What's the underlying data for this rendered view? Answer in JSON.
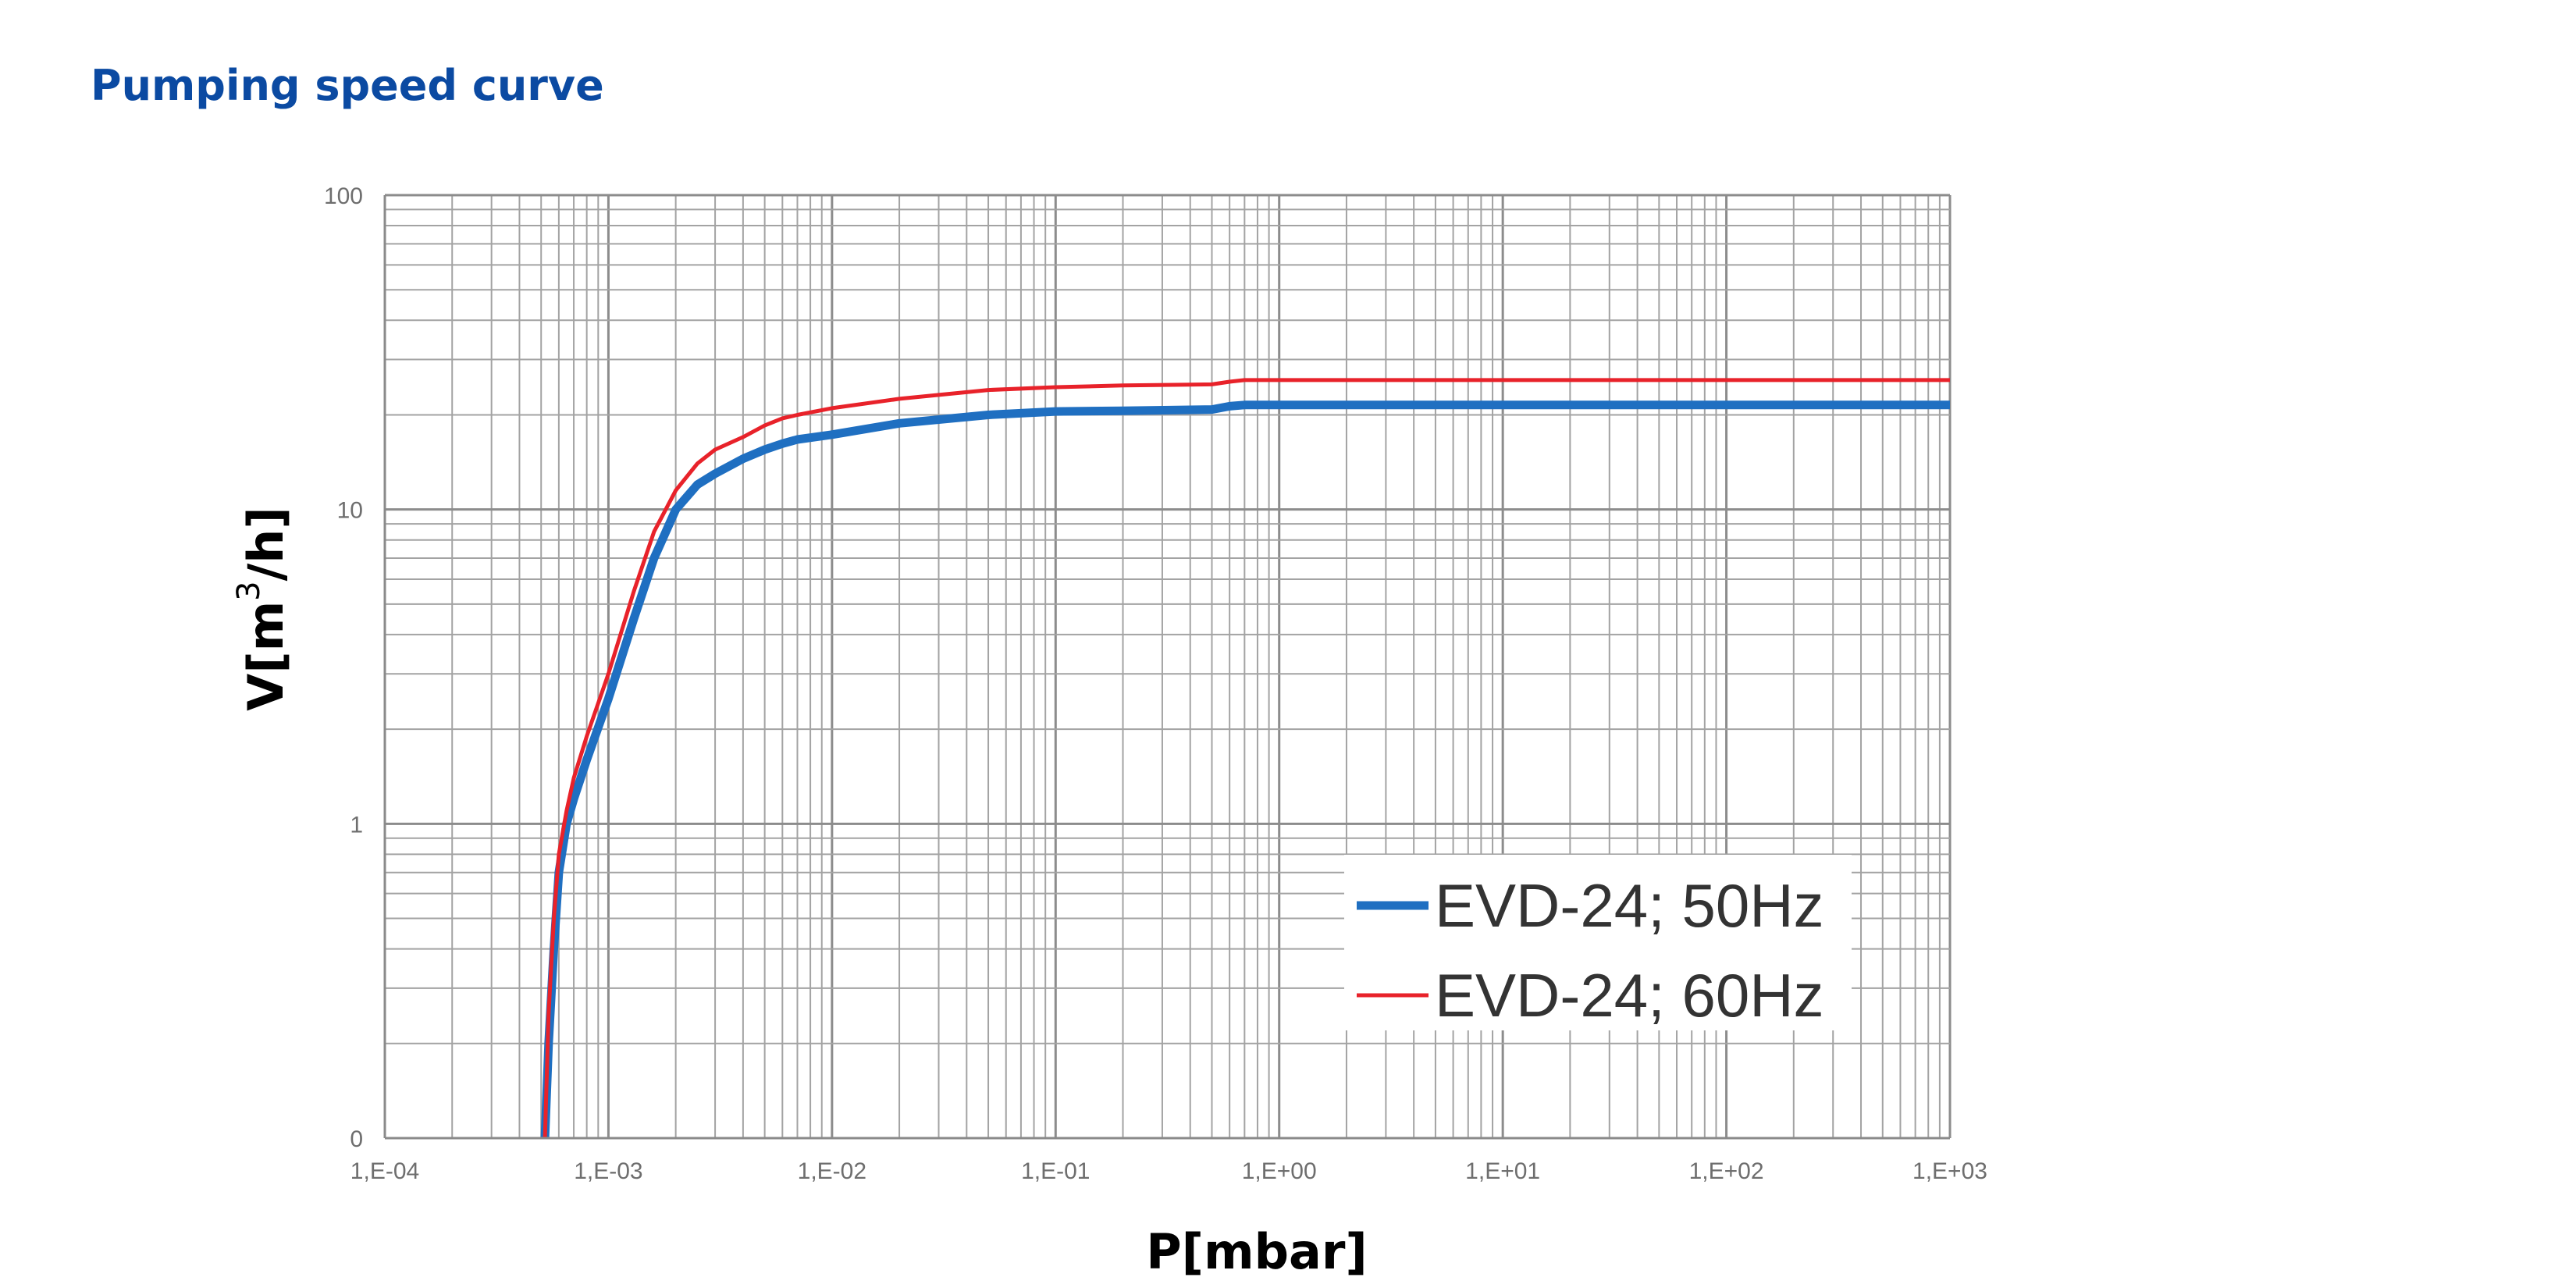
{
  "page": {
    "title": "Pumping speed curve",
    "title_color": "#0b4aa2"
  },
  "chart_data": {
    "type": "line",
    "x_scale": "log",
    "y_scale": "log",
    "xlabel": "P[mbar]",
    "ylabel_main": "V[m",
    "ylabel_sup": "3",
    "ylabel_tail": "/h]",
    "xlim": [
      0.0001,
      1000
    ],
    "ylim": [
      0.1,
      100
    ],
    "x_ticks": [
      {
        "value": 0.0001,
        "label": "1,E-04"
      },
      {
        "value": 0.001,
        "label": "1,E-03"
      },
      {
        "value": 0.01,
        "label": "1,E-02"
      },
      {
        "value": 0.1,
        "label": "1,E-01"
      },
      {
        "value": 1,
        "label": "1,E+00"
      },
      {
        "value": 10,
        "label": "1,E+01"
      },
      {
        "value": 100,
        "label": "1,E+02"
      },
      {
        "value": 1000,
        "label": "1,E+03"
      }
    ],
    "y_ticks": [
      {
        "value": 0.1,
        "label": "0"
      },
      {
        "value": 1,
        "label": "1"
      },
      {
        "value": 10,
        "label": "10"
      },
      {
        "value": 100,
        "label": "100"
      }
    ],
    "grid": true,
    "legend_position": "bottom-right",
    "series": [
      {
        "name": "EVD-24; 50Hz",
        "color": "#1f6fc1",
        "x": [
          0.00052,
          0.00054,
          0.00057,
          0.0006,
          0.00065,
          0.0007,
          0.0008,
          0.001,
          0.0013,
          0.0016,
          0.002,
          0.0025,
          0.003,
          0.004,
          0.005,
          0.006,
          0.007,
          0.01,
          0.02,
          0.05,
          0.1,
          0.2,
          0.5,
          0.6,
          0.7,
          1,
          10,
          100,
          1000
        ],
        "y": [
          0.1,
          0.2,
          0.4,
          0.7,
          1.0,
          1.2,
          1.6,
          2.5,
          4.5,
          7.0,
          10.0,
          12.0,
          13.0,
          14.5,
          15.5,
          16.2,
          16.7,
          17.3,
          18.8,
          20.0,
          20.5,
          20.6,
          20.8,
          21.3,
          21.5,
          21.5,
          21.5,
          21.5,
          21.5
        ]
      },
      {
        "name": "EVD-24; 60Hz",
        "color": "#e8222a",
        "x": [
          0.00052,
          0.00054,
          0.00057,
          0.0006,
          0.00065,
          0.0007,
          0.0008,
          0.001,
          0.0013,
          0.0016,
          0.002,
          0.0025,
          0.003,
          0.004,
          0.005,
          0.006,
          0.007,
          0.01,
          0.02,
          0.05,
          0.1,
          0.2,
          0.5,
          0.6,
          0.7,
          1,
          10,
          100,
          1000
        ],
        "y": [
          0.1,
          0.25,
          0.5,
          0.8,
          1.1,
          1.4,
          1.9,
          3.0,
          5.5,
          8.5,
          11.5,
          14.0,
          15.5,
          17.0,
          18.5,
          19.5,
          20.0,
          21.0,
          22.5,
          24.0,
          24.5,
          24.8,
          25.0,
          25.5,
          25.8,
          25.8,
          25.8,
          25.8,
          25.8
        ]
      }
    ]
  }
}
